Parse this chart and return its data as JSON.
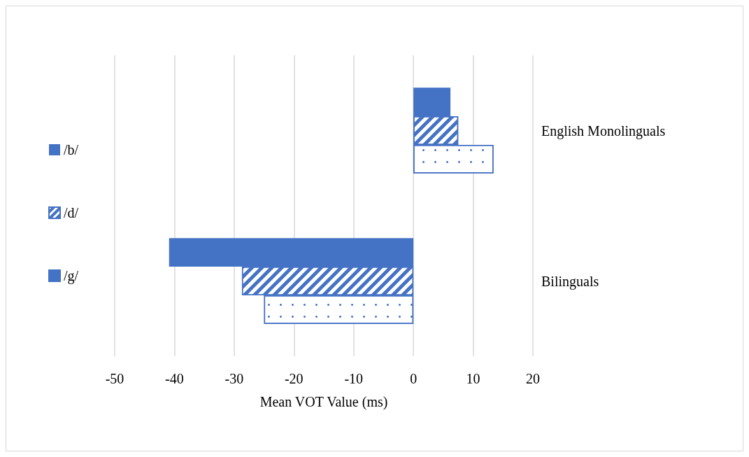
{
  "chart_data": {
    "type": "bar",
    "orientation": "horizontal",
    "xlabel": "Mean VOT Value (ms)",
    "categories": [
      "English Monolinguals",
      "Bilinguals"
    ],
    "series": [
      {
        "name": "/b/",
        "color": "#4472c4",
        "values": [
          6.2,
          -40.9
        ]
      },
      {
        "name": "/d/",
        "color": "#4472c4",
        "values": [
          7.5,
          -28.7
        ]
      },
      {
        "name": "/g/",
        "color": "#4472c4",
        "values": [
          13.4,
          -25.0
        ]
      }
    ],
    "xlim": [
      -50,
      20
    ],
    "xticks": [
      -50,
      -40,
      -30,
      -20,
      -10,
      0,
      10,
      20
    ],
    "grid": "x",
    "legend": "left"
  }
}
